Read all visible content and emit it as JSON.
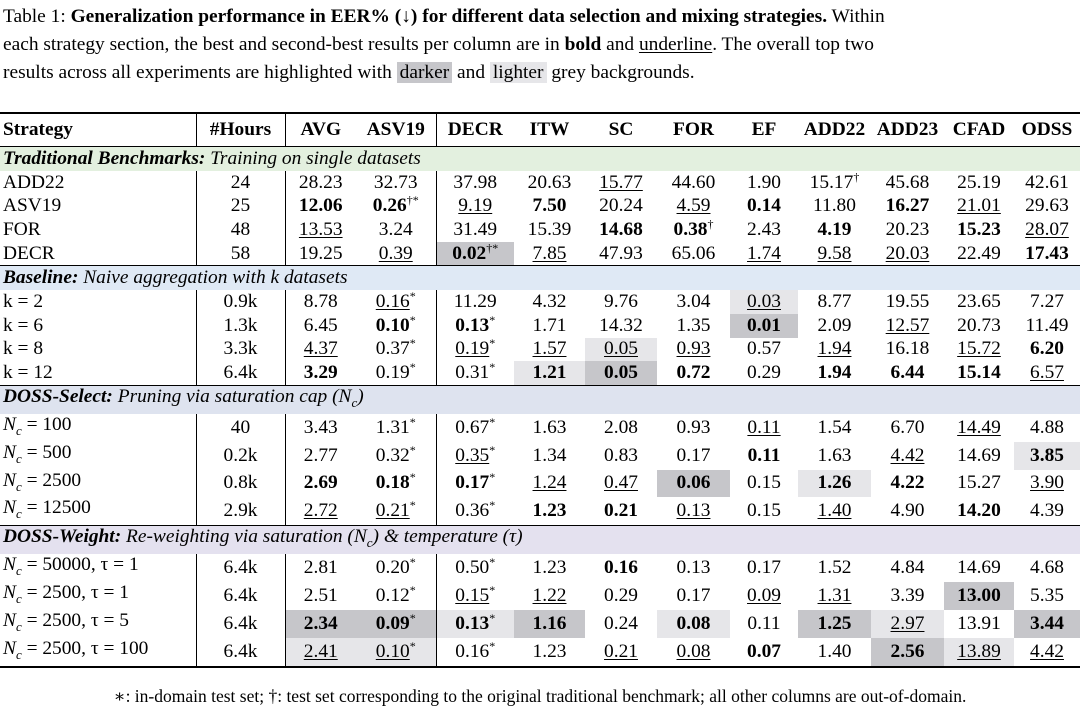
{
  "caption": {
    "prefix": "Table 1: ",
    "bold_title": "Generalization performance in EER% (↓) for different data selection and mixing strategies.",
    "line1_tail": " Within",
    "line2_a": "each strategy section, the best and second-best results per column are in ",
    "bold_word": "bold",
    "and_word": " and ",
    "underline_word": "underline",
    "line2_tail": ". The overall top two",
    "line3_a": "results across all experiments are highlighted with ",
    "darker_word": "darker",
    "line3_b": " and ",
    "lighter_word": "lighter",
    "line3_tail": " grey backgrounds."
  },
  "table": {
    "headers": [
      "Strategy",
      "#Hours",
      "AVG",
      "ASV19",
      "DECR",
      "ITW",
      "SC",
      "FOR",
      "EF",
      "ADD22",
      "ADD23",
      "CFAD",
      "ODSS"
    ],
    "sections": [
      {
        "key": "trad",
        "title_bold": "Traditional Benchmarks:",
        "title_rest": " Training on single datasets",
        "rows": [
          {
            "label": "ADD22",
            "cells": [
              {
                "v": "24"
              },
              {
                "v": "28.23"
              },
              {
                "v": "32.73"
              },
              {
                "v": "37.98"
              },
              {
                "v": "20.63"
              },
              {
                "v": "15.77",
                "s": "u"
              },
              {
                "v": "44.60"
              },
              {
                "v": "1.90"
              },
              {
                "v": "15.17",
                "sup": "†"
              },
              {
                "v": "45.68"
              },
              {
                "v": "25.19"
              },
              {
                "v": "42.61"
              }
            ]
          },
          {
            "label": "ASV19",
            "cells": [
              {
                "v": "25"
              },
              {
                "v": "12.06",
                "s": "b"
              },
              {
                "v": "0.26",
                "sup": "†*",
                "s": "b"
              },
              {
                "v": "9.19",
                "s": "u"
              },
              {
                "v": "7.50",
                "s": "b"
              },
              {
                "v": "20.24"
              },
              {
                "v": "4.59",
                "s": "u"
              },
              {
                "v": "0.14",
                "s": "b"
              },
              {
                "v": "11.80"
              },
              {
                "v": "16.27",
                "s": "b"
              },
              {
                "v": "21.01",
                "s": "u"
              },
              {
                "v": "29.63"
              }
            ]
          },
          {
            "label": "FOR",
            "cells": [
              {
                "v": "48"
              },
              {
                "v": "13.53",
                "s": "u"
              },
              {
                "v": "3.24"
              },
              {
                "v": "31.49"
              },
              {
                "v": "15.39"
              },
              {
                "v": "14.68",
                "s": "b"
              },
              {
                "v": "0.38",
                "sup": "†",
                "s": "b"
              },
              {
                "v": "2.43"
              },
              {
                "v": "4.19",
                "s": "b"
              },
              {
                "v": "20.23"
              },
              {
                "v": "15.23",
                "s": "b"
              },
              {
                "v": "28.07",
                "s": "u"
              }
            ]
          },
          {
            "label": "DECR",
            "cells": [
              {
                "v": "58"
              },
              {
                "v": "19.25"
              },
              {
                "v": "0.39",
                "s": "u"
              },
              {
                "v": "0.02",
                "sup": "†*",
                "s": "b",
                "bg": "d"
              },
              {
                "v": "7.85",
                "s": "u"
              },
              {
                "v": "47.93"
              },
              {
                "v": "65.06"
              },
              {
                "v": "1.74",
                "s": "u"
              },
              {
                "v": "9.58",
                "s": "u"
              },
              {
                "v": "20.03",
                "s": "u"
              },
              {
                "v": "22.49"
              },
              {
                "v": "17.43",
                "s": "b"
              }
            ]
          }
        ]
      },
      {
        "key": "base",
        "title_bold": "Baseline:",
        "title_rest": " Naive aggregation with k datasets",
        "rows": [
          {
            "label": "k = 2",
            "cells": [
              {
                "v": "0.9k"
              },
              {
                "v": "8.78"
              },
              {
                "v": "0.16",
                "sup": "*",
                "s": "u"
              },
              {
                "v": "11.29"
              },
              {
                "v": "4.32"
              },
              {
                "v": "9.76"
              },
              {
                "v": "3.04"
              },
              {
                "v": "0.03",
                "s": "u",
                "bg": "l"
              },
              {
                "v": "8.77"
              },
              {
                "v": "19.55"
              },
              {
                "v": "23.65"
              },
              {
                "v": "7.27"
              }
            ]
          },
          {
            "label": "k = 6",
            "cells": [
              {
                "v": "1.3k"
              },
              {
                "v": "6.45"
              },
              {
                "v": "0.10",
                "sup": "*",
                "s": "b"
              },
              {
                "v": "0.13",
                "sup": "*",
                "s": "b"
              },
              {
                "v": "1.71"
              },
              {
                "v": "14.32"
              },
              {
                "v": "1.35"
              },
              {
                "v": "0.01",
                "s": "b",
                "bg": "d"
              },
              {
                "v": "2.09"
              },
              {
                "v": "12.57",
                "s": "u"
              },
              {
                "v": "20.73"
              },
              {
                "v": "11.49"
              }
            ]
          },
          {
            "label": "k = 8",
            "cells": [
              {
                "v": "3.3k"
              },
              {
                "v": "4.37",
                "s": "u"
              },
              {
                "v": "0.37",
                "sup": "*"
              },
              {
                "v": "0.19",
                "sup": "*",
                "s": "u"
              },
              {
                "v": "1.57",
                "s": "u"
              },
              {
                "v": "0.05",
                "s": "u",
                "bg": "l"
              },
              {
                "v": "0.93",
                "s": "u"
              },
              {
                "v": "0.57"
              },
              {
                "v": "1.94",
                "s": "u"
              },
              {
                "v": "16.18"
              },
              {
                "v": "15.72",
                "s": "u"
              },
              {
                "v": "6.20",
                "s": "b"
              }
            ]
          },
          {
            "label": "k = 12",
            "cells": [
              {
                "v": "6.4k"
              },
              {
                "v": "3.29",
                "s": "b"
              },
              {
                "v": "0.19",
                "sup": "*"
              },
              {
                "v": "0.31",
                "sup": "*"
              },
              {
                "v": "1.21",
                "s": "b",
                "bg": "l"
              },
              {
                "v": "0.05",
                "s": "b",
                "bg": "d"
              },
              {
                "v": "0.72",
                "s": "b"
              },
              {
                "v": "0.29"
              },
              {
                "v": "1.94",
                "s": "b"
              },
              {
                "v": "6.44",
                "s": "b"
              },
              {
                "v": "15.14",
                "s": "b"
              },
              {
                "v": "6.57",
                "s": "u"
              }
            ]
          }
        ]
      },
      {
        "key": "sel",
        "title_bold": "DOSS-Select:",
        "title_rest": " Pruning via saturation cap (N",
        "title_sub": "c",
        "title_end": ")",
        "rows": [
          {
            "label": "N",
            "sub": "c",
            "eq": " = 100",
            "cells": [
              {
                "v": "40"
              },
              {
                "v": "3.43"
              },
              {
                "v": "1.31",
                "sup": "*"
              },
              {
                "v": "0.67",
                "sup": "*"
              },
              {
                "v": "1.63"
              },
              {
                "v": "2.08"
              },
              {
                "v": "0.93"
              },
              {
                "v": "0.11",
                "s": "u"
              },
              {
                "v": "1.54"
              },
              {
                "v": "6.70"
              },
              {
                "v": "14.49",
                "s": "u"
              },
              {
                "v": "4.88"
              }
            ]
          },
          {
            "label": "N",
            "sub": "c",
            "eq": " = 500",
            "cells": [
              {
                "v": "0.2k"
              },
              {
                "v": "2.77"
              },
              {
                "v": "0.32",
                "sup": "*"
              },
              {
                "v": "0.35",
                "sup": "*",
                "s": "u"
              },
              {
                "v": "1.34"
              },
              {
                "v": "0.83"
              },
              {
                "v": "0.17"
              },
              {
                "v": "0.11",
                "s": "b"
              },
              {
                "v": "1.63"
              },
              {
                "v": "4.42",
                "s": "u"
              },
              {
                "v": "14.69"
              },
              {
                "v": "3.85",
                "s": "b",
                "bg": "l"
              }
            ]
          },
          {
            "label": "N",
            "sub": "c",
            "eq": " = 2500",
            "cells": [
              {
                "v": "0.8k"
              },
              {
                "v": "2.69",
                "s": "b"
              },
              {
                "v": "0.18",
                "sup": "*",
                "s": "b"
              },
              {
                "v": "0.17",
                "sup": "*",
                "s": "b"
              },
              {
                "v": "1.24",
                "s": "u"
              },
              {
                "v": "0.47",
                "s": "u"
              },
              {
                "v": "0.06",
                "s": "b",
                "bg": "d"
              },
              {
                "v": "0.15"
              },
              {
                "v": "1.26",
                "s": "b",
                "bg": "l"
              },
              {
                "v": "4.22",
                "s": "b"
              },
              {
                "v": "15.27"
              },
              {
                "v": "3.90",
                "s": "u"
              }
            ]
          },
          {
            "label": "N",
            "sub": "c",
            "eq": " = 12500",
            "cells": [
              {
                "v": "2.9k"
              },
              {
                "v": "2.72",
                "s": "u"
              },
              {
                "v": "0.21",
                "sup": "*",
                "s": "u"
              },
              {
                "v": "0.36",
                "sup": "*"
              },
              {
                "v": "1.23",
                "s": "b"
              },
              {
                "v": "0.21",
                "s": "b"
              },
              {
                "v": "0.13",
                "s": "u"
              },
              {
                "v": "0.15"
              },
              {
                "v": "1.40",
                "s": "u"
              },
              {
                "v": "4.90"
              },
              {
                "v": "14.20",
                "s": "b"
              },
              {
                "v": "4.39"
              }
            ]
          }
        ]
      },
      {
        "key": "wt",
        "title_bold": "DOSS-Weight:",
        "title_rest": " Re-weighting via saturation (N",
        "title_sub": "c",
        "title_end": ") & temperature (τ)",
        "rows": [
          {
            "label": "N",
            "sub": "c",
            "eq": " = 50000, τ = 1",
            "cells": [
              {
                "v": "6.4k"
              },
              {
                "v": "2.81"
              },
              {
                "v": "0.20",
                "sup": "*"
              },
              {
                "v": "0.50",
                "sup": "*"
              },
              {
                "v": "1.23"
              },
              {
                "v": "0.16",
                "s": "b"
              },
              {
                "v": "0.13"
              },
              {
                "v": "0.17"
              },
              {
                "v": "1.52"
              },
              {
                "v": "4.84"
              },
              {
                "v": "14.69"
              },
              {
                "v": "4.68"
              }
            ]
          },
          {
            "label": "N",
            "sub": "c",
            "eq": " = 2500, τ = 1",
            "cells": [
              {
                "v": "6.4k"
              },
              {
                "v": "2.51"
              },
              {
                "v": "0.12",
                "sup": "*"
              },
              {
                "v": "0.15",
                "sup": "*",
                "s": "u"
              },
              {
                "v": "1.22",
                "s": "u"
              },
              {
                "v": "0.29"
              },
              {
                "v": "0.17"
              },
              {
                "v": "0.09",
                "s": "u"
              },
              {
                "v": "1.31",
                "s": "u"
              },
              {
                "v": "3.39"
              },
              {
                "v": "13.00",
                "s": "b",
                "bg": "d"
              },
              {
                "v": "5.35"
              }
            ]
          },
          {
            "label": "N",
            "sub": "c",
            "eq": " = 2500, τ = 5",
            "cells": [
              {
                "v": "6.4k"
              },
              {
                "v": "2.34",
                "s": "b",
                "bg": "d"
              },
              {
                "v": "0.09",
                "sup": "*",
                "s": "b",
                "bg": "d"
              },
              {
                "v": "0.13",
                "sup": "*",
                "s": "b",
                "bg": "l"
              },
              {
                "v": "1.16",
                "s": "b",
                "bg": "d"
              },
              {
                "v": "0.24"
              },
              {
                "v": "0.08",
                "s": "b",
                "bg": "l"
              },
              {
                "v": "0.11"
              },
              {
                "v": "1.25",
                "s": "b",
                "bg": "d"
              },
              {
                "v": "2.97",
                "s": "u",
                "bg": "l"
              },
              {
                "v": "13.91"
              },
              {
                "v": "3.44",
                "s": "b",
                "bg": "d"
              }
            ]
          },
          {
            "label": "N",
            "sub": "c",
            "eq": " = 2500, τ = 100",
            "cells": [
              {
                "v": "6.4k"
              },
              {
                "v": "2.41",
                "s": "u",
                "bg": "l"
              },
              {
                "v": "0.10",
                "sup": "*",
                "s": "u",
                "bg": "l"
              },
              {
                "v": "0.16",
                "sup": "*"
              },
              {
                "v": "1.23"
              },
              {
                "v": "0.21",
                "s": "u"
              },
              {
                "v": "0.08",
                "s": "u"
              },
              {
                "v": "0.07",
                "s": "b"
              },
              {
                "v": "1.40"
              },
              {
                "v": "2.56",
                "s": "b",
                "bg": "d"
              },
              {
                "v": "13.89",
                "s": "u",
                "bg": "l"
              },
              {
                "v": "4.42",
                "s": "u"
              }
            ]
          }
        ]
      }
    ]
  },
  "footnote": "∗: in-domain test set; †: test set corresponding to the original traditional benchmark; all other columns are out-of-domain.",
  "colors": {
    "darker": "#c6c6ca",
    "lighter": "#e6e6e9",
    "trad_band": "#e3f0df",
    "base_band": "#dfe9f5",
    "select_band": "#dee3ef",
    "weight_band": "#e4e1ef"
  }
}
